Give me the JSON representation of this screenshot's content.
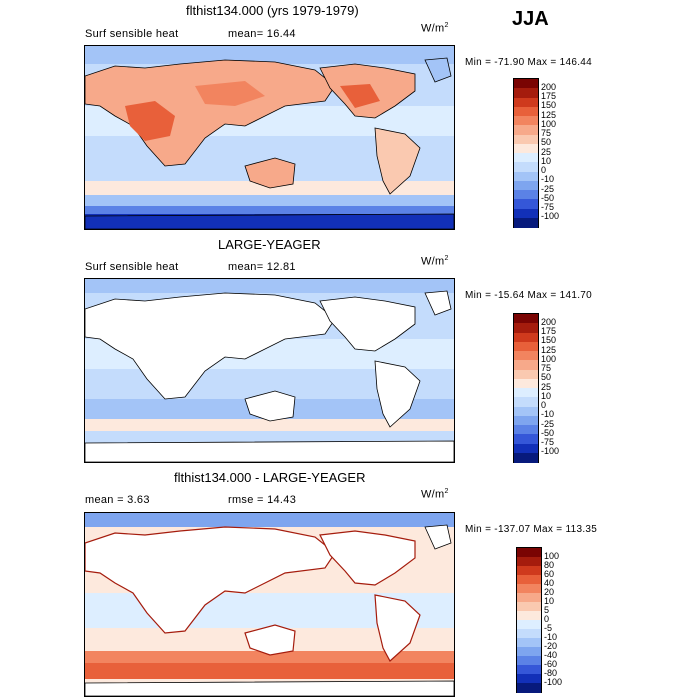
{
  "season": "JJA",
  "units_label": "W/m",
  "units_sup": "2",
  "panels": [
    {
      "title": "flthist134.000 (yrs 1979-1979)",
      "left_label": "Surf sensible heat",
      "mid_label": "mean=  16.44",
      "minmax": "Min = -71.90  Max = 146.44",
      "levels": [
        "200",
        "175",
        "150",
        "125",
        "100",
        "75",
        "50",
        "25",
        "10",
        "0",
        "-10",
        "-25",
        "-50",
        "-75",
        "-100"
      ],
      "colors": [
        "#7a0403",
        "#a51c0d",
        "#cf3a1d",
        "#e8603a",
        "#f2845f",
        "#f7a98a",
        "#fac9b0",
        "#fde9dd",
        "#ddeeff",
        "#c4dcfc",
        "#a3c4f7",
        "#7ea5ef",
        "#5b82e6",
        "#3557d8",
        "#1230b8",
        "#071a7c"
      ]
    },
    {
      "title": "LARGE-YEAGER",
      "left_label": "Surf sensible heat",
      "mid_label": "mean=  12.81",
      "minmax": "Min = -15.64  Max = 141.70",
      "levels": [
        "200",
        "175",
        "150",
        "125",
        "100",
        "75",
        "50",
        "25",
        "10",
        "0",
        "-10",
        "-25",
        "-50",
        "-75",
        "-100"
      ],
      "colors": [
        "#7a0403",
        "#a51c0d",
        "#cf3a1d",
        "#e8603a",
        "#f2845f",
        "#f7a98a",
        "#fac9b0",
        "#fde9dd",
        "#ddeeff",
        "#c4dcfc",
        "#a3c4f7",
        "#7ea5ef",
        "#5b82e6",
        "#3557d8",
        "#1230b8",
        "#071a7c"
      ]
    },
    {
      "title": "flthist134.000 - LARGE-YEAGER",
      "left_label": "mean =    3.63",
      "mid_label": "rmse =   14.43",
      "minmax": "Min = -137.07  Max = 113.35",
      "levels": [
        "100",
        "80",
        "60",
        "40",
        "20",
        "10",
        "5",
        "0",
        "-5",
        "-10",
        "-20",
        "-40",
        "-60",
        "-80",
        "-100"
      ],
      "colors": [
        "#7a0403",
        "#a51c0d",
        "#cf3a1d",
        "#e8603a",
        "#f2845f",
        "#f7a98a",
        "#fac9b0",
        "#fde9dd",
        "#ddeeff",
        "#c4dcfc",
        "#a3c4f7",
        "#7ea5ef",
        "#5b82e6",
        "#3557d8",
        "#1230b8",
        "#071a7c"
      ]
    }
  ]
}
